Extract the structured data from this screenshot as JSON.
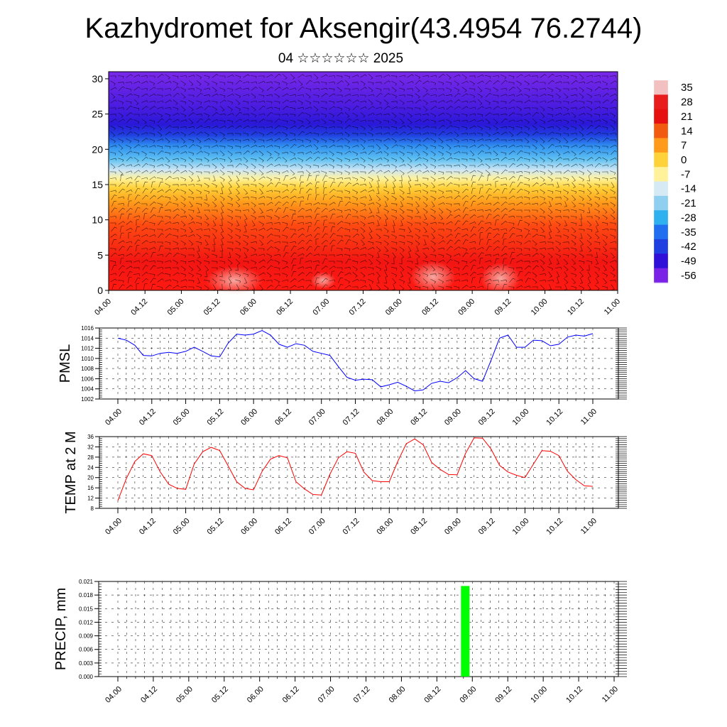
{
  "header": {
    "title": "Kazhydromet for Aksengir(43.4954 76.2744)",
    "subtitle": "04 ☆☆☆☆☆☆ 2025"
  },
  "chart_data": [
    {
      "type": "heatmap",
      "title": "",
      "x_ticks": [
        "04.00",
        "04.12",
        "05.00",
        "05.12",
        "06.00",
        "06.12",
        "07.00",
        "07.12",
        "08.00",
        "08.12",
        "09.00",
        "09.12",
        "10.00",
        "10.12",
        "11.00"
      ],
      "y_ticks": [
        0,
        5,
        10,
        15,
        20,
        25,
        30
      ],
      "ylim": [
        0,
        31
      ],
      "colorbar_labels": [
        35,
        28,
        21,
        14,
        7,
        0,
        -7,
        -14,
        -21,
        -28,
        -35,
        -42,
        -49,
        -56
      ],
      "colors": {
        "35": "#f2c0c0",
        "28": "#e81c1c",
        "21": "#e61010",
        "14": "#f25a10",
        "7": "#ff9a1a",
        "0": "#ffd23a",
        "-7": "#fff29a",
        "-14": "#d6eaf5",
        "-21": "#8fd0f0",
        "-28": "#2fb0ef",
        "-35": "#1f6ff0",
        "-42": "#1f3fe0",
        "-49": "#3010d8",
        "-56": "#7a22e6"
      },
      "overlay": "wind barbs"
    },
    {
      "type": "line",
      "ylabel": "PMSL",
      "ylim": [
        1002,
        1016
      ],
      "y_ticks": [
        1002,
        1004,
        1006,
        1008,
        1010,
        1012,
        1014,
        1016
      ],
      "x_ticks": [
        "04.00",
        "04.12",
        "05.00",
        "05.12",
        "06.00",
        "06.12",
        "07.00",
        "07.12",
        "08.00",
        "08.12",
        "09.00",
        "09.12",
        "10.00",
        "10.12",
        "11.00"
      ],
      "series": [
        {
          "color": "#0000ff",
          "values": [
            1014.0,
            1013.6,
            1012.6,
            1010.6,
            1010.5,
            1011.0,
            1011.2,
            1011.0,
            1011.4,
            1012.2,
            1011.4,
            1010.5,
            1010.3,
            1013.0,
            1014.8,
            1014.6,
            1014.8,
            1015.5,
            1014.6,
            1012.8,
            1012.2,
            1012.9,
            1012.6,
            1011.4,
            1011.0,
            1010.6,
            1008.4,
            1006.3,
            1005.7,
            1005.9,
            1005.8,
            1004.4,
            1004.8,
            1005.3,
            1004.5,
            1003.6,
            1003.8,
            1005.1,
            1005.5,
            1005.2,
            1006.2,
            1007.6,
            1006.0,
            1005.5,
            1009.6,
            1014.0,
            1014.6,
            1012.2,
            1012.2,
            1013.6,
            1013.5,
            1012.5,
            1012.8,
            1014.2,
            1014.6,
            1014.4,
            1014.9
          ]
        }
      ]
    },
    {
      "type": "line",
      "ylabel": "TEMP at 2 M",
      "ylim": [
        8,
        36
      ],
      "y_ticks": [
        8,
        12,
        16,
        20,
        24,
        28,
        32,
        36
      ],
      "x_ticks": [
        "04.00",
        "04.12",
        "05.00",
        "05.12",
        "06.00",
        "06.12",
        "07.00",
        "07.12",
        "08.00",
        "08.12",
        "09.00",
        "09.12",
        "10.00",
        "10.12",
        "11.00"
      ],
      "series": [
        {
          "color": "#ff0000",
          "values": [
            11,
            19.6,
            26.3,
            29.3,
            28.6,
            22.2,
            17.4,
            15.8,
            15.4,
            25.3,
            30.1,
            31.8,
            30.6,
            24.6,
            18.4,
            15.8,
            15.2,
            22.4,
            27.2,
            28.6,
            27.7,
            18.4,
            15.6,
            13.4,
            13.2,
            21.3,
            27.7,
            30.1,
            29.5,
            22.2,
            18.8,
            18.4,
            18.4,
            26.3,
            33.2,
            35.1,
            32.8,
            25.9,
            23.2,
            21.2,
            21.1,
            29.5,
            35.5,
            35.4,
            31.2,
            24.8,
            22.2,
            20.9,
            20.0,
            25.3,
            30.5,
            30.3,
            28.6,
            22.5,
            19.2,
            16.8,
            16.6
          ]
        }
      ]
    },
    {
      "type": "bar",
      "ylabel": "PRECIP, mm",
      "ylim": [
        0,
        0.021
      ],
      "y_ticks": [
        "0.000",
        "0.003",
        "0.006",
        "0.009",
        "0.012",
        "0.015",
        "0.018",
        "0.021"
      ],
      "x_ticks": [
        "04.00",
        "04.12",
        "05.00",
        "05.12",
        "06.00",
        "06.12",
        "07.00",
        "07.12",
        "08.00",
        "08.12",
        "09.00",
        "09.12",
        "10.00",
        "10.12",
        "11.00"
      ],
      "bars": [
        {
          "x": 9.8,
          "value": 0.02,
          "color": "#00ff00"
        }
      ]
    }
  ]
}
